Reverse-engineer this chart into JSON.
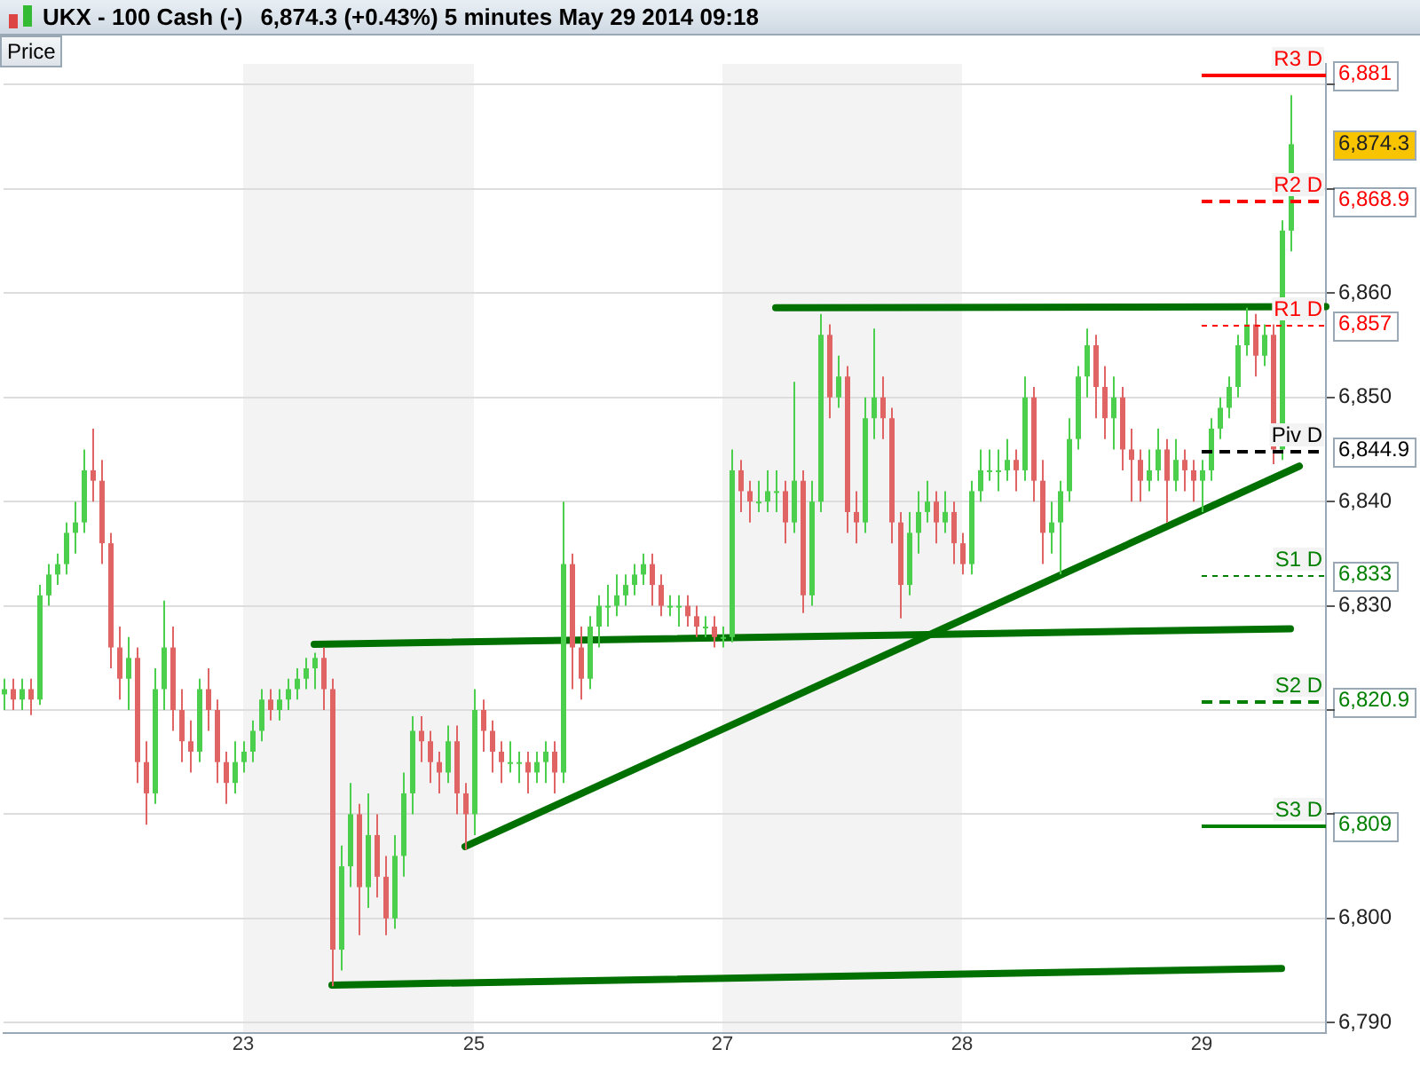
{
  "chart_data": {
    "type": "candlestick",
    "title": "UKX - 100 Cash (-)",
    "subtitle": "6,874.3 (+0.43%)    5 minutes    May 29 2014 09:18",
    "ylabel": "Price",
    "categories": [
      null,
      null,
      null,
      null,
      null,
      null,
      null,
      null,
      null,
      null,
      null,
      null,
      null,
      null,
      null,
      null,
      null,
      null,
      null,
      null,
      null,
      null,
      null,
      null,
      null,
      null,
      null,
      "23",
      null,
      null,
      null,
      null,
      null,
      null,
      null,
      null,
      null,
      null,
      null,
      null,
      null,
      null,
      null,
      null,
      null,
      null,
      null,
      null,
      null,
      null,
      null,
      null,
      null,
      "25",
      null,
      null,
      null,
      null,
      null,
      null,
      null,
      null,
      null,
      null,
      null,
      null,
      null,
      null,
      null,
      null,
      null,
      null,
      null,
      null,
      null,
      null,
      null,
      null,
      null,
      null,
      null,
      "27",
      null,
      null,
      null,
      null,
      null,
      null,
      null,
      null,
      null,
      null,
      null,
      null,
      null,
      null,
      null,
      null,
      null,
      null,
      null,
      null,
      null,
      null,
      null,
      null,
      null,
      null,
      "28",
      null,
      null,
      null,
      null,
      null,
      null,
      null,
      null,
      null,
      null,
      null,
      null,
      null,
      null,
      null,
      null,
      null,
      null,
      null,
      null,
      null,
      null,
      null,
      null,
      null,
      null,
      "29",
      null,
      null,
      null,
      null,
      null,
      null,
      null,
      null,
      null,
      null,
      null,
      null,
      null,
      null
    ],
    "ohlc": [
      [
        6821.5,
        6823,
        6820,
        6822
      ],
      [
        6822,
        6823,
        6820,
        6821
      ],
      [
        6821,
        6823,
        6820,
        6822
      ],
      [
        6822,
        6823,
        6819.5,
        6821
      ],
      [
        6821,
        6832,
        6820.5,
        6831
      ],
      [
        6831,
        6834,
        6830,
        6833
      ],
      [
        6833,
        6835,
        6832,
        6834
      ],
      [
        6834,
        6838,
        6833,
        6837
      ],
      [
        6837,
        6840,
        6835,
        6838
      ],
      [
        6838,
        6845,
        6837,
        6843
      ],
      [
        6843,
        6847,
        6840,
        6842
      ],
      [
        6842,
        6844,
        6834,
        6836
      ],
      [
        6836,
        6837,
        6824,
        6826
      ],
      [
        6826,
        6828,
        6821,
        6823
      ],
      [
        6823,
        6827,
        6820,
        6825
      ],
      [
        6825,
        6826,
        6813,
        6815
      ],
      [
        6815,
        6817,
        6809,
        6812
      ],
      [
        6812,
        6824,
        6811,
        6822
      ],
      [
        6822,
        6830.5,
        6820,
        6826
      ],
      [
        6826,
        6828,
        6818,
        6820
      ],
      [
        6820,
        6822,
        6815,
        6817
      ],
      [
        6817,
        6819,
        6814,
        6816
      ],
      [
        6816,
        6823,
        6815,
        6822
      ],
      [
        6822,
        6824,
        6818,
        6820
      ],
      [
        6820,
        6821,
        6813,
        6815
      ],
      [
        6815,
        6816,
        6811,
        6813
      ],
      [
        6813,
        6817,
        6812,
        6815
      ],
      [
        6815,
        6817,
        6814,
        6816
      ],
      [
        6816,
        6819,
        6815,
        6818
      ],
      [
        6818,
        6822,
        6817,
        6821
      ],
      [
        6821,
        6822,
        6819,
        6820
      ],
      [
        6820,
        6822,
        6819,
        6821
      ],
      [
        6821,
        6823,
        6820,
        6822
      ],
      [
        6822,
        6824,
        6821,
        6823
      ],
      [
        6823,
        6825,
        6822,
        6824
      ],
      [
        6824,
        6825.5,
        6822,
        6825
      ],
      [
        6825,
        6826,
        6820,
        6822
      ],
      [
        6822,
        6823,
        6793.5,
        6797
      ],
      [
        6797,
        6807,
        6795,
        6805
      ],
      [
        6805,
        6813,
        6803,
        6810
      ],
      [
        6810,
        6811,
        6798.4,
        6803
      ],
      [
        6803,
        6812,
        6801,
        6808
      ],
      [
        6808,
        6810,
        6802,
        6804
      ],
      [
        6804,
        6806,
        6798.4,
        6800
      ],
      [
        6800,
        6808,
        6799,
        6806
      ],
      [
        6806,
        6814,
        6804,
        6812
      ],
      [
        6812,
        6819.4,
        6810,
        6818
      ],
      [
        6818,
        6819.4,
        6815,
        6817
      ],
      [
        6817,
        6818,
        6813,
        6815
      ],
      [
        6815,
        6816,
        6812,
        6814
      ],
      [
        6814,
        6818.5,
        6813,
        6817
      ],
      [
        6817,
        6818.5,
        6810,
        6812
      ],
      [
        6812,
        6813,
        6806.6,
        6810
      ],
      [
        6810,
        6822,
        6808,
        6820
      ],
      [
        6820,
        6821,
        6816,
        6818
      ],
      [
        6818,
        6819,
        6814,
        6816
      ],
      [
        6816,
        6817,
        6813,
        6815
      ],
      [
        6815,
        6817,
        6814,
        6815
      ],
      [
        6815,
        6816,
        6813,
        6815
      ],
      [
        6815,
        6816,
        6812,
        6814
      ],
      [
        6814,
        6816,
        6813,
        6815
      ],
      [
        6815,
        6817,
        6813,
        6816
      ],
      [
        6816,
        6817,
        6812,
        6814
      ],
      [
        6814,
        6840,
        6813,
        6834
      ],
      [
        6834,
        6835,
        6822,
        6826
      ],
      [
        6826,
        6828,
        6821,
        6823
      ],
      [
        6823,
        6829,
        6822,
        6828
      ],
      [
        6828,
        6831,
        6826,
        6830
      ],
      [
        6830,
        6832,
        6828,
        6830
      ],
      [
        6830,
        6833,
        6829,
        6831
      ],
      [
        6831,
        6833,
        6830,
        6832
      ],
      [
        6832,
        6834,
        6831,
        6833
      ],
      [
        6833,
        6835,
        6832,
        6834
      ],
      [
        6834,
        6835,
        6830,
        6832
      ],
      [
        6832,
        6833,
        6829,
        6830
      ],
      [
        6830,
        6831,
        6829,
        6830
      ],
      [
        6830,
        6831,
        6828,
        6830
      ],
      [
        6830,
        6831,
        6828,
        6829
      ],
      [
        6829,
        6830,
        6827,
        6828
      ],
      [
        6828,
        6829,
        6827,
        6828
      ],
      [
        6828,
        6829,
        6826,
        6827
      ],
      [
        6827,
        6828,
        6826,
        6827
      ],
      [
        6827,
        6845,
        6826.5,
        6843
      ],
      [
        6843,
        6844,
        6839,
        6841
      ],
      [
        6841,
        6842,
        6838,
        6840
      ],
      [
        6840,
        6842,
        6839,
        6840
      ],
      [
        6840,
        6843,
        6839,
        6841
      ],
      [
        6841,
        6843,
        6839,
        6841
      ],
      [
        6841,
        6842,
        6836,
        6838
      ],
      [
        6838,
        6851.5,
        6837,
        6842
      ],
      [
        6842,
        6843,
        6829.3,
        6831
      ],
      [
        6831,
        6842,
        6830,
        6840
      ],
      [
        6840,
        6858,
        6839,
        6856
      ],
      [
        6856,
        6857,
        6848,
        6850
      ],
      [
        6850,
        6854,
        6849,
        6852
      ],
      [
        6852,
        6853,
        6837,
        6839
      ],
      [
        6839,
        6841,
        6836,
        6838
      ],
      [
        6838,
        6850,
        6837,
        6848
      ],
      [
        6848,
        6856.6,
        6846,
        6850
      ],
      [
        6850,
        6852,
        6846,
        6848
      ],
      [
        6848,
        6849,
        6836,
        6838
      ],
      [
        6838,
        6839,
        6828.8,
        6832
      ],
      [
        6832,
        6839,
        6831,
        6837
      ],
      [
        6837,
        6841,
        6835,
        6839
      ],
      [
        6839,
        6842,
        6838,
        6840
      ],
      [
        6840,
        6841,
        6836,
        6838
      ],
      [
        6838,
        6841,
        6837,
        6839
      ],
      [
        6839,
        6840,
        6834,
        6836
      ],
      [
        6836,
        6837,
        6833,
        6834
      ],
      [
        6834,
        6842,
        6833,
        6841
      ],
      [
        6841,
        6845,
        6840,
        6843
      ],
      [
        6843,
        6845,
        6842,
        6843
      ],
      [
        6843,
        6845,
        6841,
        6843
      ],
      [
        6843,
        6846,
        6842,
        6844
      ],
      [
        6844,
        6845,
        6841,
        6843
      ],
      [
        6843,
        6852,
        6842,
        6850
      ],
      [
        6850,
        6851,
        6840,
        6842
      ],
      [
        6842,
        6844,
        6834,
        6837
      ],
      [
        6837,
        6840,
        6835,
        6838
      ],
      [
        6838,
        6842,
        6833,
        6841
      ],
      [
        6841,
        6848,
        6840,
        6846
      ],
      [
        6846,
        6853,
        6845,
        6852
      ],
      [
        6852,
        6856.6,
        6850,
        6855
      ],
      [
        6855,
        6856,
        6848,
        6851
      ],
      [
        6851,
        6853,
        6846,
        6848
      ],
      [
        6848,
        6852,
        6845,
        6850
      ],
      [
        6850,
        6851,
        6843,
        6845
      ],
      [
        6845,
        6847,
        6840,
        6844
      ],
      [
        6844,
        6845,
        6840,
        6842
      ],
      [
        6842,
        6845,
        6841,
        6843
      ],
      [
        6843,
        6847,
        6842,
        6845
      ],
      [
        6845,
        6846,
        6838,
        6842
      ],
      [
        6842,
        6846,
        6841,
        6844
      ],
      [
        6844,
        6845,
        6841,
        6843
      ],
      [
        6843,
        6844,
        6840,
        6842
      ],
      [
        6842,
        6844,
        6839,
        6843
      ],
      [
        6843,
        6848,
        6842,
        6847
      ],
      [
        6847,
        6850,
        6846,
        6849
      ],
      [
        6849,
        6852,
        6848,
        6851
      ],
      [
        6851,
        6856,
        6850,
        6855
      ],
      [
        6855,
        6858.6,
        6854,
        6857
      ],
      [
        6857,
        6858,
        6852,
        6854
      ],
      [
        6854,
        6857,
        6853,
        6856
      ],
      [
        6856,
        6857,
        6843.6,
        6845
      ],
      [
        6845,
        6867,
        6844,
        6866
      ],
      [
        6866,
        6879,
        6864,
        6874.3
      ],
      null,
      null,
      null,
      null
    ],
    "series": [
      {
        "type": "line",
        "color": "#007000",
        "values": [
          null,
          null,
          null,
          null,
          null,
          null,
          null,
          null,
          null,
          null,
          null,
          null,
          null,
          null,
          null,
          null,
          null,
          null,
          null,
          null,
          null,
          null,
          null,
          null,
          null,
          null,
          null,
          null,
          null,
          null,
          null,
          null,
          null,
          null,
          null,
          null,
          null,
          null,
          null,
          null,
          null,
          null,
          null,
          null,
          null,
          null,
          null,
          null,
          null,
          null,
          null,
          null,
          null,
          null,
          null,
          null,
          null,
          null,
          null,
          null,
          null,
          null,
          null,
          null,
          null,
          null,
          null,
          null,
          null,
          null,
          null,
          null,
          null,
          null,
          null,
          null,
          null,
          null,
          null,
          null,
          null,
          null,
          null,
          null,
          null,
          null,
          null,
          6858.6,
          null,
          null,
          null,
          null,
          null,
          null,
          null,
          null,
          null,
          null,
          null,
          null,
          null,
          null,
          null,
          null,
          null,
          null,
          null,
          null,
          null,
          null,
          null,
          null,
          null,
          null,
          null,
          null,
          null,
          null,
          null,
          null,
          null,
          null,
          null,
          null,
          null,
          null,
          null,
          null,
          null,
          null,
          null,
          null,
          null,
          null,
          null,
          null,
          null,
          null,
          null,
          null,
          null,
          null,
          null,
          null,
          null,
          null,
          null,
          null,
          null,
          6858.7
        ]
      },
      {
        "type": "line",
        "color": "#007000",
        "values": [
          null,
          null,
          null,
          null,
          null,
          null,
          null,
          null,
          null,
          null,
          null,
          null,
          null,
          null,
          null,
          null,
          null,
          null,
          null,
          null,
          null,
          null,
          null,
          null,
          null,
          null,
          null,
          null,
          null,
          null,
          null,
          null,
          null,
          null,
          null,
          6826.3,
          null,
          null,
          null,
          null,
          null,
          null,
          null,
          null,
          null,
          null,
          null,
          null,
          null,
          null,
          null,
          null,
          null,
          null,
          null,
          null,
          null,
          null,
          null,
          null,
          null,
          null,
          null,
          null,
          null,
          null,
          null,
          null,
          null,
          null,
          null,
          null,
          null,
          null,
          null,
          null,
          null,
          null,
          null,
          null,
          null,
          null,
          null,
          null,
          null,
          null,
          null,
          null,
          null,
          null,
          null,
          null,
          null,
          null,
          null,
          null,
          null,
          null,
          null,
          null,
          null,
          null,
          null,
          null,
          null,
          null,
          null,
          null,
          null,
          null,
          null,
          null,
          null,
          null,
          null,
          null,
          null,
          null,
          null,
          null,
          null,
          null,
          null,
          null,
          null,
          null,
          null,
          null,
          null,
          null,
          null,
          null,
          null,
          null,
          null,
          null,
          null,
          null,
          null,
          null,
          null,
          null,
          null,
          null,
          null,
          6827.8,
          null,
          null,
          null,
          null
        ]
      },
      {
        "type": "line",
        "color": "#007000",
        "values": [
          null,
          null,
          null,
          null,
          null,
          null,
          null,
          null,
          null,
          null,
          null,
          null,
          null,
          null,
          null,
          null,
          null,
          null,
          null,
          null,
          null,
          null,
          null,
          null,
          null,
          null,
          null,
          null,
          null,
          null,
          null,
          null,
          null,
          null,
          null,
          null,
          null,
          null,
          null,
          null,
          null,
          null,
          null,
          null,
          null,
          null,
          null,
          null,
          null,
          null,
          null,
          null,
          6806.9,
          null,
          null,
          null,
          null,
          null,
          null,
          null,
          null,
          null,
          null,
          null,
          null,
          null,
          null,
          null,
          null,
          null,
          null,
          null,
          null,
          null,
          null,
          null,
          null,
          null,
          null,
          null,
          null,
          null,
          null,
          null,
          null,
          null,
          null,
          null,
          null,
          null,
          null,
          null,
          null,
          null,
          null,
          null,
          null,
          null,
          null,
          null,
          null,
          null,
          null,
          null,
          null,
          null,
          null,
          null,
          null,
          null,
          null,
          null,
          null,
          null,
          null,
          null,
          null,
          null,
          null,
          null,
          null,
          null,
          null,
          null,
          null,
          null,
          null,
          null,
          null,
          null,
          null,
          null,
          null,
          null,
          null,
          null,
          null,
          null,
          null,
          null,
          null,
          null,
          null,
          null,
          null,
          null,
          6843.4,
          null,
          null,
          null
        ]
      },
      {
        "type": "line",
        "color": "#007000",
        "values": [
          null,
          null,
          null,
          null,
          null,
          null,
          null,
          null,
          null,
          null,
          null,
          null,
          null,
          null,
          null,
          null,
          null,
          null,
          null,
          null,
          null,
          null,
          null,
          null,
          null,
          null,
          null,
          null,
          null,
          null,
          null,
          null,
          null,
          null,
          null,
          null,
          null,
          6793.6,
          null,
          null,
          null,
          null,
          null,
          null,
          null,
          null,
          null,
          null,
          null,
          null,
          null,
          null,
          null,
          null,
          null,
          null,
          null,
          null,
          null,
          null,
          null,
          null,
          null,
          null,
          null,
          null,
          null,
          null,
          null,
          null,
          null,
          null,
          null,
          null,
          null,
          null,
          null,
          null,
          null,
          null,
          null,
          null,
          null,
          null,
          null,
          null,
          null,
          null,
          null,
          null,
          null,
          null,
          null,
          null,
          null,
          null,
          null,
          null,
          null,
          null,
          null,
          null,
          null,
          null,
          null,
          null,
          null,
          null,
          null,
          null,
          null,
          null,
          null,
          null,
          null,
          null,
          null,
          null,
          null,
          null,
          null,
          null,
          null,
          null,
          null,
          null,
          null,
          null,
          null,
          null,
          null,
          null,
          null,
          null,
          null,
          null,
          null,
          null,
          null,
          null,
          null,
          null,
          null,
          null,
          6795.2,
          null,
          null,
          null,
          null,
          null
        ]
      }
    ],
    "ref_lines": [
      {
        "axis": "y",
        "value": 6881,
        "label": "R3 D",
        "color": "#ff0000",
        "line_style": "solid"
      },
      {
        "axis": "y",
        "value": 6868.9,
        "label": "R2 D",
        "color": "#ff0000",
        "line_style": "dashed"
      },
      {
        "axis": "y",
        "value": 6857,
        "label": "R1 D",
        "color": "#ff0000",
        "line_style": "dotted"
      },
      {
        "axis": "y",
        "value": 6844.9,
        "label": "Piv D",
        "color": "#000000",
        "line_style": "dashed"
      },
      {
        "axis": "y",
        "value": 6833,
        "label": "S1 D",
        "color": "#008000",
        "line_style": "dotted"
      },
      {
        "axis": "y",
        "value": 6820.9,
        "label": "S2 D",
        "color": "#008000",
        "line_style": "dashed"
      },
      {
        "axis": "y",
        "value": 6809,
        "label": "S3 D",
        "color": "#008000",
        "line_style": "solid"
      }
    ],
    "bands": [
      {
        "axis": "x",
        "from": "23",
        "to": "25",
        "color": "#f3f3f3"
      },
      {
        "axis": "x",
        "from": "27",
        "to": "28",
        "color": "#f3f3f3"
      }
    ],
    "ylim": [
      6789,
      6882
    ],
    "yticks": [
      {
        "value": 6790,
        "label": "6,790"
      },
      {
        "value": 6800,
        "label": "6,800"
      },
      {
        "value": 6810,
        "label": null
      },
      {
        "value": 6820,
        "label": null
      },
      {
        "value": 6830,
        "label": "6,830"
      },
      {
        "value": 6840,
        "label": "6,840"
      },
      {
        "value": 6850,
        "label": "6,850"
      },
      {
        "value": 6860,
        "label": "6,860"
      },
      {
        "value": 6870,
        "label": null
      },
      {
        "value": 6880,
        "label": null
      },
      {
        "value": 6881,
        "label": "6,881"
      },
      {
        "value": 6874.3,
        "label": "6,874.3"
      },
      {
        "value": 6868.9,
        "label": "6,868.9"
      },
      {
        "value": 6857,
        "label": "6,857"
      },
      {
        "value": 6844.9,
        "label": "6,844.9"
      },
      {
        "value": 6833,
        "label": "6,833"
      },
      {
        "value": 6820.9,
        "label": "6,820.9"
      },
      {
        "value": 6809,
        "label": "6,809"
      }
    ],
    "grid": "y",
    "legend": false
  }
}
